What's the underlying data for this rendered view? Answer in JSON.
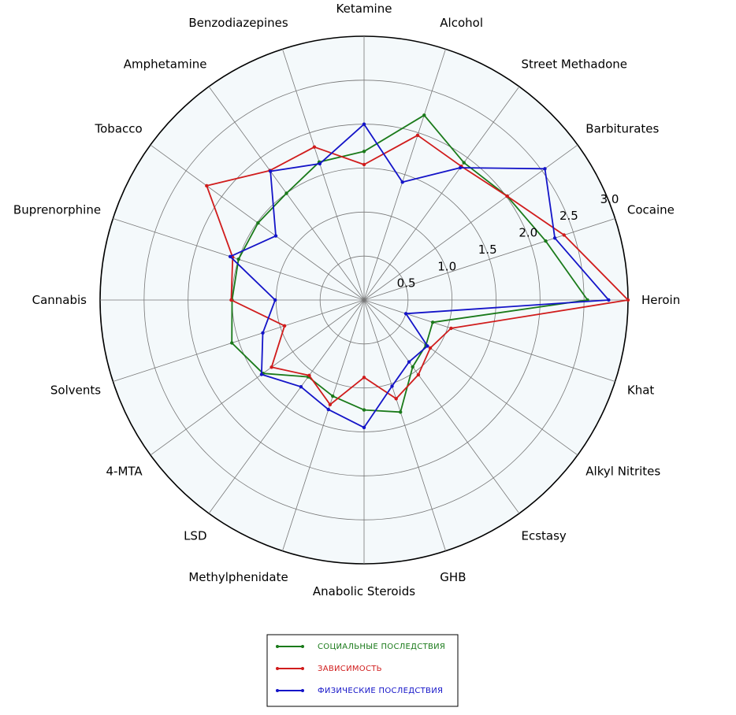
{
  "chart_data": {
    "type": "radar",
    "categories": [
      "Heroin",
      "Cocaine",
      "Barbiturates",
      "Street Methadone",
      "Alcohol",
      "Ketamine",
      "Benzodiazepines",
      "Amphetamine",
      "Tobacco",
      "Buprenorphine",
      "Cannabis",
      "Solvents",
      "4-MTA",
      "LSD",
      "Methylphenidate",
      "Anabolic Steroids",
      "GHB",
      "Ecstasy",
      "Alkyl Nitrites",
      "Khat"
    ],
    "series": [
      {
        "name": "социальные последствия",
        "color": "#1a7a1a",
        "values": [
          2.54,
          2.17,
          2.01,
          1.93,
          2.21,
          1.69,
          1.65,
          1.5,
          1.49,
          1.5,
          1.5,
          1.58,
          1.42,
          1.08,
          1.15,
          1.25,
          1.34,
          0.94,
          0.87,
          0.82
        ]
      },
      {
        "name": "зависимость",
        "color": "#d01c1c",
        "values": [
          3.0,
          2.39,
          2.01,
          1.88,
          1.97,
          1.54,
          1.83,
          1.82,
          2.21,
          1.57,
          1.51,
          0.95,
          1.3,
          1.06,
          1.25,
          0.88,
          1.18,
          1.05,
          0.93,
          1.04
        ]
      },
      {
        "name": "физические последствия",
        "color": "#1414c8",
        "values": [
          2.78,
          2.28,
          2.54,
          1.86,
          1.41,
          2.0,
          1.63,
          1.81,
          1.24,
          1.6,
          1.01,
          1.21,
          1.44,
          1.22,
          1.31,
          1.45,
          1.03,
          0.87,
          0.89,
          0.5
        ]
      }
    ],
    "r_ticks": [
      "0.5",
      "1.0",
      "1.5",
      "2.0",
      "2.5",
      "3.0"
    ],
    "r_range": [
      0,
      3.0
    ],
    "grid": true,
    "legend_position": "bottom-center",
    "legend": [
      {
        "label": "социальные последствия",
        "color": "#1a7a1a"
      },
      {
        "label": "зависимость",
        "color": "#d01c1c"
      },
      {
        "label": "физические последствия",
        "color": "#1414c8"
      }
    ]
  }
}
